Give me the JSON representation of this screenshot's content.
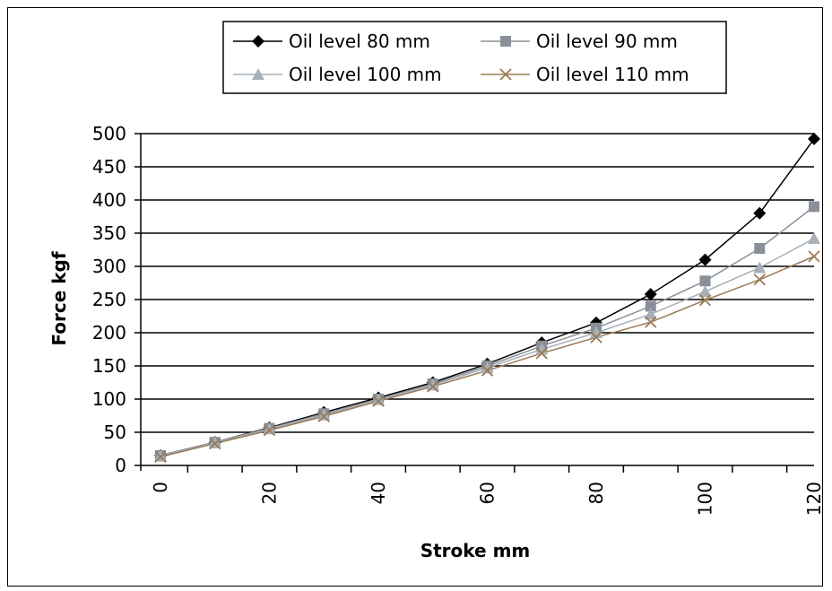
{
  "chart_data": {
    "type": "line",
    "title": "",
    "xlabel": "Stroke mm",
    "ylabel": "Force kgf",
    "xlim": [
      0,
      120
    ],
    "ylim": [
      0,
      500
    ],
    "y_ticks": [
      "0",
      "50",
      "100",
      "150",
      "200",
      "250",
      "300",
      "350",
      "400",
      "450",
      "500"
    ],
    "x_ticks": [
      "0",
      "20",
      "40",
      "60",
      "80",
      "100",
      "120"
    ],
    "grid": "horizontal",
    "legend_position": "top",
    "x": [
      0,
      10,
      20,
      30,
      40,
      50,
      60,
      70,
      80,
      90,
      100,
      110,
      120
    ],
    "series": [
      {
        "name": "Oil level 80 mm",
        "marker": "diamond",
        "color": "#000000",
        "values": [
          15,
          35,
          57,
          80,
          102,
          125,
          153,
          185,
          215,
          258,
          310,
          380,
          492
        ]
      },
      {
        "name": "Oil level 90 mm",
        "marker": "square",
        "color": "#8a9099",
        "values": [
          15,
          35,
          56,
          78,
          100,
          123,
          150,
          180,
          207,
          240,
          278,
          327,
          390
        ]
      },
      {
        "name": "Oil level 100 mm",
        "marker": "triangle",
        "color": "#a7b0b8",
        "values": [
          14,
          34,
          55,
          76,
          99,
          121,
          147,
          175,
          200,
          228,
          262,
          298,
          342
        ]
      },
      {
        "name": "Oil level 110 mm",
        "marker": "x",
        "color": "#9a7a55",
        "values": [
          13,
          33,
          53,
          74,
          97,
          119,
          143,
          169,
          193,
          216,
          249,
          280,
          315
        ]
      }
    ]
  }
}
